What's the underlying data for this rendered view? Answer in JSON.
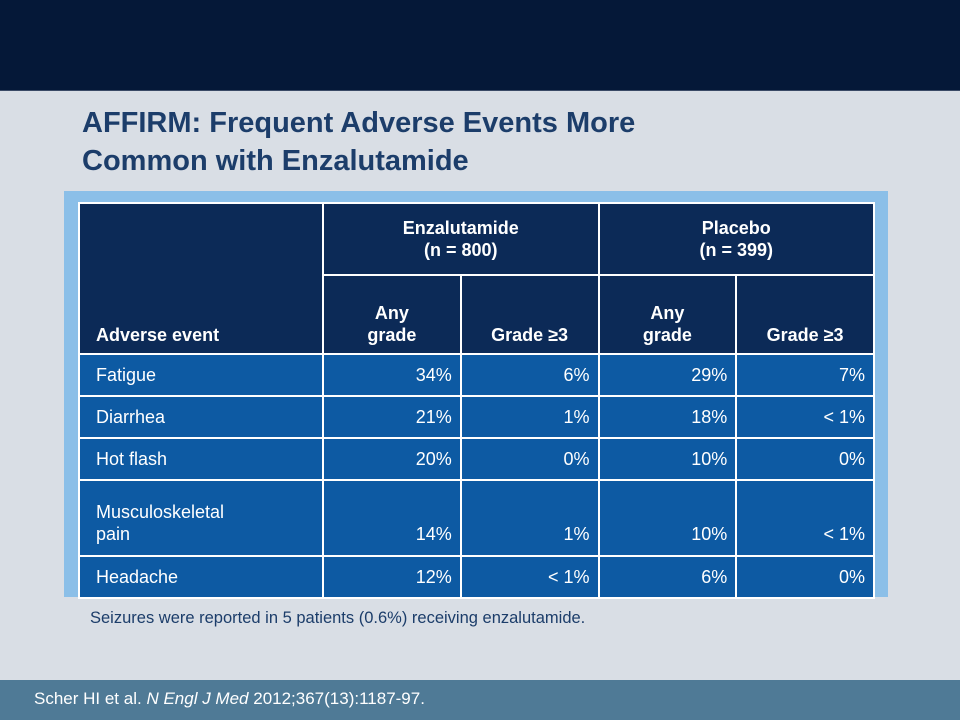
{
  "title": {
    "line1": "AFFIRM: Frequent Adverse Events More",
    "line2": "Common with Enzalutamide"
  },
  "table": {
    "event_header": "Adverse event",
    "groups": [
      {
        "name": "Enzalutamide",
        "n": "(n = 800)"
      },
      {
        "name": "Placebo",
        "n": "(n = 399)"
      }
    ],
    "subheaders": [
      {
        "line1": "Any",
        "line2": "grade"
      },
      {
        "line1": "",
        "line2": "Grade ≥3"
      },
      {
        "line1": "Any",
        "line2": "grade"
      },
      {
        "line1": "",
        "line2": "Grade ≥3"
      }
    ],
    "rows": [
      {
        "event_line1": "Fatigue",
        "event_line2": "",
        "values": [
          "34%",
          "6%",
          "29%",
          "7%"
        ]
      },
      {
        "event_line1": "Diarrhea",
        "event_line2": "",
        "values": [
          "21%",
          "1%",
          "18%",
          "< 1%"
        ]
      },
      {
        "event_line1": "Hot flash",
        "event_line2": "",
        "values": [
          "20%",
          "0%",
          "10%",
          "0%"
        ]
      },
      {
        "event_line1": "Musculoskeletal",
        "event_line2": "pain",
        "values": [
          "14%",
          "1%",
          "10%",
          "< 1%"
        ]
      },
      {
        "event_line1": "Headache",
        "event_line2": "",
        "values": [
          "12%",
          "< 1%",
          "6%",
          "0%"
        ]
      }
    ]
  },
  "footnote": "Seizures were reported in 5 patients (0.6%) receiving enzalutamide.",
  "citation": {
    "authors": "Scher HI et al.",
    "journal": "N Engl J Med",
    "details": "2012;367(13):1187-97."
  }
}
